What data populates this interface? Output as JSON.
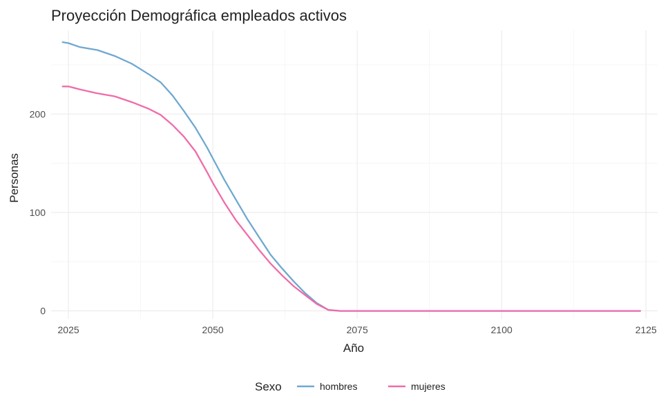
{
  "chart_data": {
    "type": "line",
    "title": "Proyección Demográfica empleados activos",
    "xlabel": "Año",
    "ylabel": "Personas",
    "xlim": [
      2022,
      2127
    ],
    "ylim": [
      -8,
      285
    ],
    "x_ticks": [
      2025,
      2050,
      2075,
      2100,
      2125
    ],
    "y_ticks": [
      0,
      100,
      200
    ],
    "grid": true,
    "legend": {
      "title": "Sexo",
      "position": "bottom",
      "entries": [
        "hombres",
        "mujeres"
      ]
    },
    "series": [
      {
        "name": "hombres",
        "color": "#6fa8d0",
        "points": [
          [
            2024,
            273
          ],
          [
            2025,
            272
          ],
          [
            2027,
            268
          ],
          [
            2030,
            265
          ],
          [
            2033,
            259
          ],
          [
            2036,
            251
          ],
          [
            2039,
            240
          ],
          [
            2041,
            232
          ],
          [
            2043,
            219
          ],
          [
            2045,
            203
          ],
          [
            2047,
            186
          ],
          [
            2049,
            166
          ],
          [
            2050,
            155
          ],
          [
            2052,
            133
          ],
          [
            2054,
            113
          ],
          [
            2056,
            93
          ],
          [
            2058,
            75
          ],
          [
            2060,
            57
          ],
          [
            2062,
            43
          ],
          [
            2064,
            30
          ],
          [
            2066,
            18
          ],
          [
            2068,
            8
          ],
          [
            2070,
            1
          ],
          [
            2072,
            0
          ],
          [
            2124,
            0
          ]
        ]
      },
      {
        "name": "mujeres",
        "color": "#f06ba8",
        "points": [
          [
            2024,
            228
          ],
          [
            2025,
            228
          ],
          [
            2027,
            225
          ],
          [
            2030,
            221
          ],
          [
            2033,
            218
          ],
          [
            2036,
            212
          ],
          [
            2039,
            205
          ],
          [
            2041,
            199
          ],
          [
            2043,
            189
          ],
          [
            2045,
            177
          ],
          [
            2047,
            162
          ],
          [
            2049,
            141
          ],
          [
            2050,
            130
          ],
          [
            2052,
            110
          ],
          [
            2054,
            92
          ],
          [
            2056,
            77
          ],
          [
            2058,
            62
          ],
          [
            2060,
            48
          ],
          [
            2062,
            36
          ],
          [
            2064,
            25
          ],
          [
            2066,
            16
          ],
          [
            2068,
            7
          ],
          [
            2070,
            1
          ],
          [
            2072,
            0
          ],
          [
            2124,
            0
          ]
        ]
      }
    ]
  }
}
